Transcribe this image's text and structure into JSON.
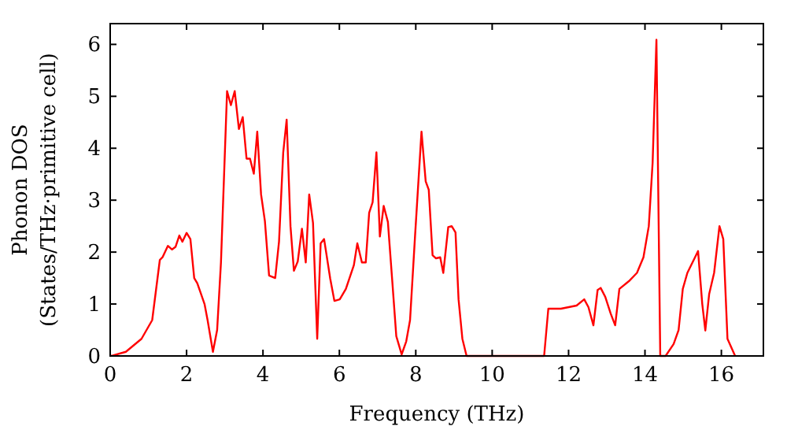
{
  "chart_data": {
    "type": "line",
    "xlabel": "Frequency (THz)",
    "ylabel": "Phonon DOS\n(States/THz·primitive cell)",
    "xlim": [
      0,
      17.1
    ],
    "ylim": [
      0,
      6.4
    ],
    "xticks": [
      0,
      2,
      4,
      6,
      8,
      10,
      12,
      14,
      16
    ],
    "yticks": [
      0,
      1,
      2,
      3,
      4,
      5,
      6
    ],
    "grid": false,
    "marker": "none",
    "line_style": "solid",
    "series": [
      {
        "color": "#ff0000",
        "x": [
          0,
          0.07,
          0.41,
          0.82,
          1.1,
          1.3,
          1.37,
          1.51,
          1.62,
          1.71,
          1.81,
          1.89,
          2.0,
          2.1,
          2.2,
          2.28,
          2.47,
          2.55,
          2.69,
          2.8,
          2.9,
          3.06,
          3.16,
          3.26,
          3.37,
          3.47,
          3.57,
          3.66,
          3.76,
          3.85,
          3.95,
          4.05,
          4.16,
          4.32,
          4.42,
          4.53,
          4.62,
          4.72,
          4.81,
          4.91,
          5.02,
          5.12,
          5.21,
          5.31,
          5.42,
          5.51,
          5.6,
          5.76,
          5.87,
          6.01,
          6.17,
          6.38,
          6.47,
          6.59,
          6.69,
          6.78,
          6.87,
          6.97,
          7.06,
          7.16,
          7.27,
          7.38,
          7.49,
          7.63,
          7.75,
          7.85,
          7.98,
          8.15,
          8.26,
          8.34,
          8.44,
          8.53,
          8.64,
          8.72,
          8.85,
          8.94,
          9.04,
          9.12,
          9.22,
          9.33,
          11.36,
          11.47,
          11.8,
          12.21,
          12.41,
          12.52,
          12.65,
          12.76,
          12.84,
          12.96,
          13.1,
          13.22,
          13.33,
          13.58,
          13.79,
          13.96,
          14.1,
          14.2,
          14.3,
          14.4,
          14.54,
          14.75,
          14.88,
          14.99,
          15.11,
          15.29,
          15.39,
          15.5,
          15.58,
          15.68,
          15.81,
          15.95,
          16.05,
          16.16,
          16.36
        ],
        "values": [
          0,
          0.01,
          0.08,
          0.33,
          0.69,
          1.85,
          1.9,
          2.12,
          2.05,
          2.1,
          2.32,
          2.2,
          2.37,
          2.25,
          1.5,
          1.4,
          1.0,
          0.69,
          0.08,
          0.5,
          1.8,
          5.1,
          4.83,
          5.1,
          4.37,
          4.6,
          3.8,
          3.8,
          3.51,
          4.32,
          3.11,
          2.6,
          1.55,
          1.5,
          2.2,
          3.92,
          4.55,
          2.5,
          1.64,
          1.82,
          2.45,
          1.8,
          3.11,
          2.56,
          0.33,
          2.17,
          2.25,
          1.49,
          1.06,
          1.09,
          1.29,
          1.75,
          2.17,
          1.8,
          1.8,
          2.76,
          2.96,
          3.92,
          2.3,
          2.89,
          2.58,
          1.49,
          0.38,
          0.03,
          0.28,
          0.69,
          2.3,
          4.32,
          3.36,
          3.2,
          1.94,
          1.88,
          1.9,
          1.6,
          2.48,
          2.5,
          2.38,
          1.09,
          0.33,
          0,
          0,
          0.91,
          0.91,
          0.97,
          1.09,
          0.94,
          0.59,
          1.27,
          1.31,
          1.14,
          0.82,
          0.59,
          1.29,
          1.44,
          1.6,
          1.9,
          2.5,
          3.72,
          6.09,
          0,
          0,
          0.23,
          0.5,
          1.29,
          1.6,
          1.87,
          2.02,
          1.0,
          0.49,
          1.19,
          1.6,
          2.5,
          2.25,
          0.33,
          0
        ]
      }
    ]
  }
}
